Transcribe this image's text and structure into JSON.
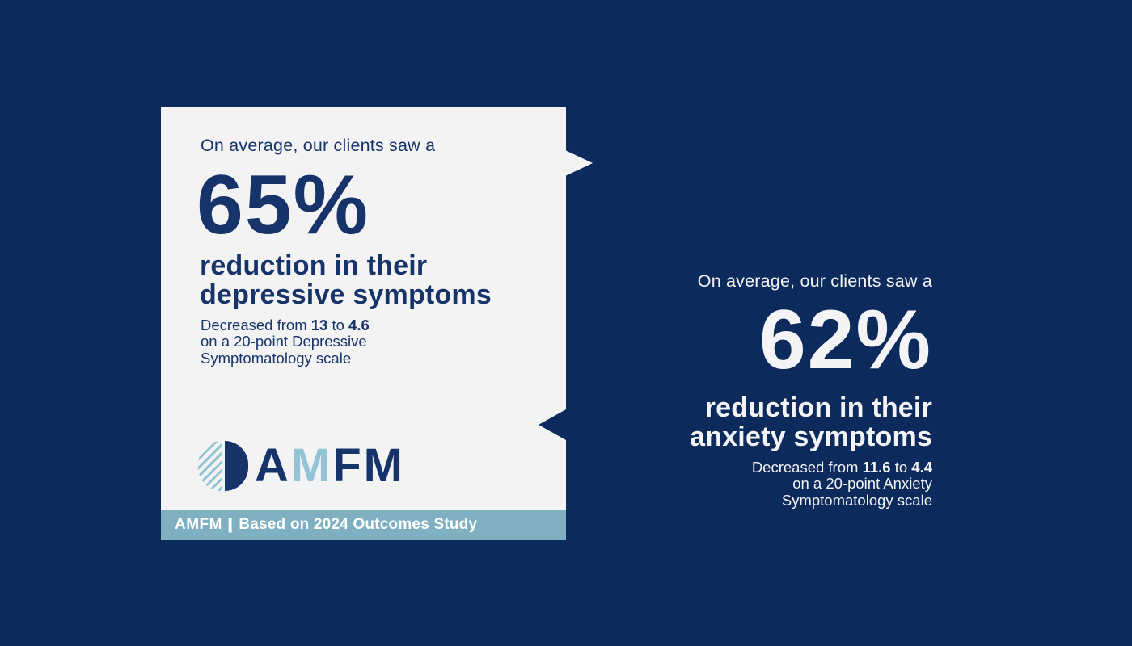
{
  "colors": {
    "background_navy": "#0d2a5c",
    "card_offwhite": "#f3f3f4",
    "navy_text": "#17346a",
    "footer_teal": "#7fb0c1",
    "logo_light_blue": "#93c4d6",
    "white_text": "#f4f4f6"
  },
  "left_card": {
    "headline": "On average, our clients saw a",
    "stat_value": "65%",
    "caption_line1": "reduction in their",
    "caption_line2": "depressive symptoms",
    "detail": {
      "prefix": "Decreased from",
      "from_value": "13",
      "connector": "to",
      "to_value": "4.6",
      "line2": "on a 20-point Depressive",
      "line3": "Symptomatology scale"
    },
    "logo": {
      "letters": [
        {
          "char": "A"
        },
        {
          "char": "M"
        },
        {
          "char": "F"
        },
        {
          "char": "M"
        }
      ]
    },
    "footer": {
      "brand": "AMFM",
      "divider": "|",
      "caption": "Based on 2024 Outcomes Study"
    }
  },
  "right_panel": {
    "headline": "On average, our clients saw a",
    "stat_value": "62%",
    "caption_line1": "reduction in their",
    "caption_line2": "anxiety symptoms",
    "detail": {
      "prefix": "Decreased from",
      "from_value": "11.6",
      "connector": "to",
      "to_value": "4.4",
      "line2": "on a 20-point Anxiety",
      "line3": "Symptomatology scale"
    }
  }
}
